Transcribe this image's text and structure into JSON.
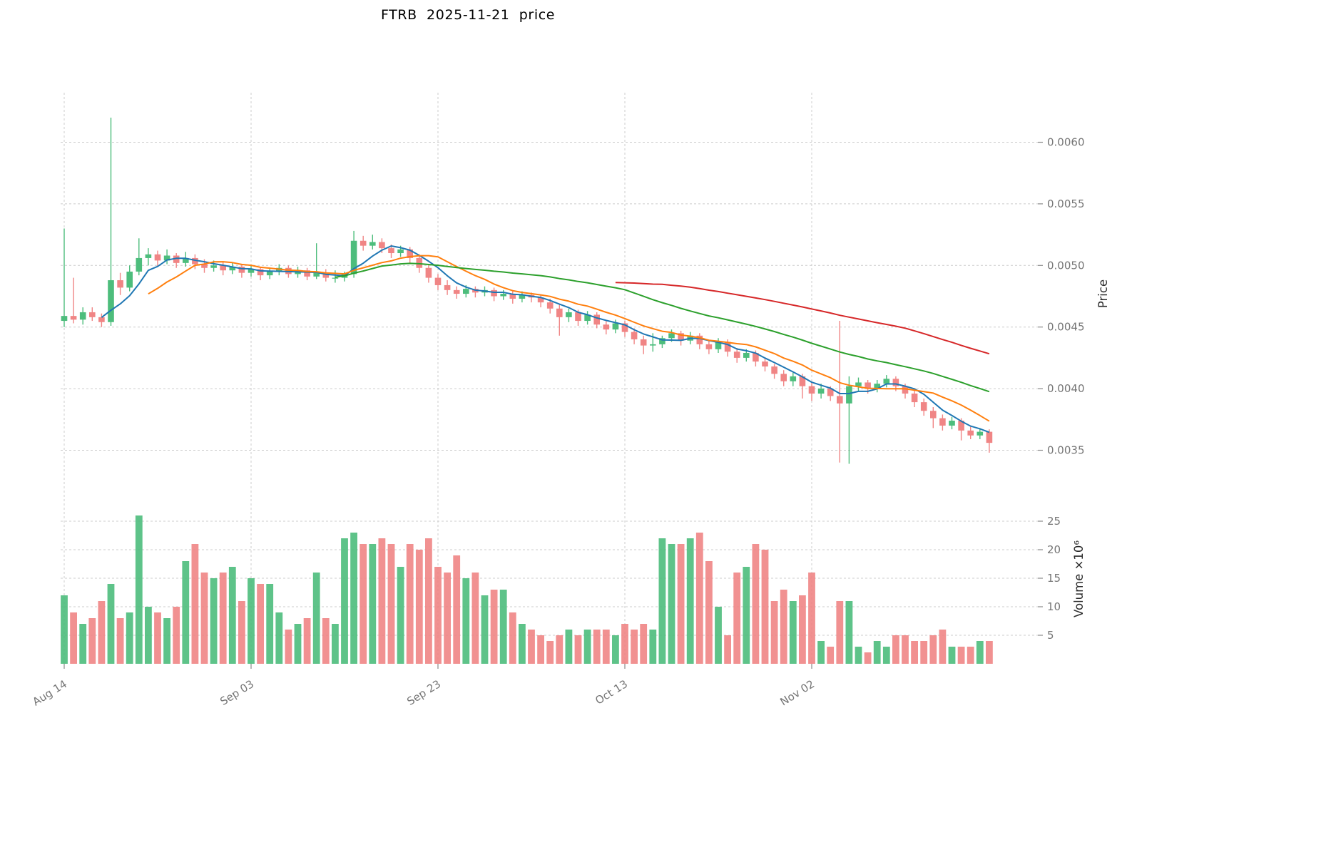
{
  "title": "FTRB  2025-11-21  price",
  "chart_data": {
    "type": "candlestick",
    "subtype": "ohlc-with-volume-and-moving-averages",
    "title": "FTRB  2025-11-21  price",
    "symbol": "FTRB",
    "as_of_date": "2025-11-21",
    "grid": true,
    "legend_position": "none",
    "price_axis": {
      "label": "Price",
      "side": "right",
      "ticks": [
        0.0035,
        0.004,
        0.0045,
        0.005,
        0.0055,
        0.006
      ],
      "range": [
        0.0032,
        0.0064
      ]
    },
    "volume_axis": {
      "label": "Volume  ×10⁶",
      "side": "right",
      "unit": 1000000,
      "ticks": [
        5,
        10,
        15,
        20,
        25
      ],
      "range": [
        0,
        27
      ]
    },
    "x_axis": {
      "tick_labels": [
        "Aug 14",
        "Sep 03",
        "Sep 23",
        "Oct 13",
        "Nov 02"
      ],
      "tick_indices": [
        0,
        20,
        40,
        60,
        80
      ],
      "n_points": 100
    },
    "colors": {
      "up": "#4dbd7c",
      "down": "#f08585",
      "ma_fast": "#1f77b4",
      "ma_mid": "#ff7f0e",
      "ma_slow": "#2ca02c",
      "ma_long": "#d62728",
      "grid": "#cccccc",
      "tick_text": "#757575"
    },
    "moving_averages": [
      {
        "window": 5,
        "color_key": "ma_fast"
      },
      {
        "window": 10,
        "color_key": "ma_mid"
      },
      {
        "window": 30,
        "color_key": "ma_slow"
      },
      {
        "window": 60,
        "color_key": "ma_long"
      }
    ],
    "ohlcv_columns": [
      "open",
      "high",
      "low",
      "close",
      "volume_millions"
    ],
    "ohlcv": [
      [
        0.00455,
        0.0053,
        0.0045,
        0.00459,
        12.0
      ],
      [
        0.00459,
        0.0049,
        0.00453,
        0.00456,
        9.0
      ],
      [
        0.00456,
        0.00466,
        0.00452,
        0.00462,
        7.0
      ],
      [
        0.00462,
        0.00466,
        0.00455,
        0.00458,
        8.0
      ],
      [
        0.00458,
        0.00461,
        0.0045,
        0.00454,
        11.0
      ],
      [
        0.00454,
        0.0062,
        0.00451,
        0.00488,
        14.0
      ],
      [
        0.00488,
        0.00494,
        0.00476,
        0.00482,
        8.0
      ],
      [
        0.00482,
        0.005,
        0.00479,
        0.00495,
        9.0
      ],
      [
        0.00495,
        0.00522,
        0.00492,
        0.00506,
        26.0
      ],
      [
        0.00506,
        0.00514,
        0.005,
        0.00509,
        10.0
      ],
      [
        0.00509,
        0.00512,
        0.00499,
        0.00504,
        9.0
      ],
      [
        0.00504,
        0.00513,
        0.00501,
        0.00508,
        8.0
      ],
      [
        0.00508,
        0.0051,
        0.00498,
        0.00502,
        10.0
      ],
      [
        0.00502,
        0.00511,
        0.00499,
        0.00506,
        18.0
      ],
      [
        0.00506,
        0.00509,
        0.00497,
        0.00501,
        21.0
      ],
      [
        0.00501,
        0.00505,
        0.00494,
        0.00498,
        16.0
      ],
      [
        0.00498,
        0.00504,
        0.00495,
        0.005,
        15.0
      ],
      [
        0.005,
        0.00503,
        0.00492,
        0.00496,
        16.0
      ],
      [
        0.00496,
        0.00502,
        0.00493,
        0.00499,
        17.0
      ],
      [
        0.00499,
        0.00501,
        0.0049,
        0.00494,
        11.0
      ],
      [
        0.00494,
        0.005,
        0.00491,
        0.00497,
        15.0
      ],
      [
        0.00497,
        0.00499,
        0.00488,
        0.00492,
        14.0
      ],
      [
        0.00492,
        0.00498,
        0.00489,
        0.00495,
        14.0
      ],
      [
        0.00495,
        0.00501,
        0.00492,
        0.00498,
        9.0
      ],
      [
        0.00498,
        0.005,
        0.0049,
        0.00493,
        6.0
      ],
      [
        0.00493,
        0.00499,
        0.0049,
        0.00496,
        7.0
      ],
      [
        0.00496,
        0.00498,
        0.00488,
        0.00491,
        8.0
      ],
      [
        0.00491,
        0.00518,
        0.00489,
        0.00494,
        16.0
      ],
      [
        0.00494,
        0.00497,
        0.00487,
        0.0049,
        8.0
      ],
      [
        0.0049,
        0.00496,
        0.00486,
        0.0049,
        7.0
      ],
      [
        0.0049,
        0.00495,
        0.00487,
        0.00493,
        22.0
      ],
      [
        0.00493,
        0.00528,
        0.0049,
        0.0052,
        23.0
      ],
      [
        0.0052,
        0.00524,
        0.00512,
        0.00516,
        21.0
      ],
      [
        0.00516,
        0.00525,
        0.00513,
        0.00519,
        21.0
      ],
      [
        0.00519,
        0.00522,
        0.0051,
        0.00514,
        22.0
      ],
      [
        0.00514,
        0.00517,
        0.00506,
        0.0051,
        21.0
      ],
      [
        0.0051,
        0.00516,
        0.00507,
        0.00513,
        17.0
      ],
      [
        0.00513,
        0.00515,
        0.00502,
        0.00506,
        21.0
      ],
      [
        0.00506,
        0.00509,
        0.00494,
        0.00498,
        20.0
      ],
      [
        0.00498,
        0.00501,
        0.00486,
        0.0049,
        22.0
      ],
      [
        0.0049,
        0.00493,
        0.0048,
        0.00484,
        17.0
      ],
      [
        0.00484,
        0.00488,
        0.00476,
        0.0048,
        16.0
      ],
      [
        0.0048,
        0.00483,
        0.00473,
        0.00477,
        19.0
      ],
      [
        0.00477,
        0.00484,
        0.00474,
        0.00481,
        15.0
      ],
      [
        0.00481,
        0.00483,
        0.00474,
        0.00478,
        16.0
      ],
      [
        0.00478,
        0.00483,
        0.00475,
        0.0048,
        12.0
      ],
      [
        0.0048,
        0.00482,
        0.00471,
        0.00475,
        13.0
      ],
      [
        0.00475,
        0.0048,
        0.00472,
        0.00477,
        13.0
      ],
      [
        0.00477,
        0.00479,
        0.00469,
        0.00473,
        9.0
      ],
      [
        0.00473,
        0.00479,
        0.0047,
        0.00476,
        7.0
      ],
      [
        0.00476,
        0.00478,
        0.0047,
        0.00474,
        6.0
      ],
      [
        0.00474,
        0.00476,
        0.00466,
        0.0047,
        5.0
      ],
      [
        0.0047,
        0.00473,
        0.00461,
        0.00465,
        4.0
      ],
      [
        0.00465,
        0.00468,
        0.00443,
        0.00458,
        5.0
      ],
      [
        0.00458,
        0.00465,
        0.00454,
        0.00462,
        6.0
      ],
      [
        0.00462,
        0.00464,
        0.00451,
        0.00455,
        5.0
      ],
      [
        0.00455,
        0.00463,
        0.00452,
        0.0046,
        6.0
      ],
      [
        0.0046,
        0.00462,
        0.00449,
        0.00452,
        6.0
      ],
      [
        0.00452,
        0.00455,
        0.00444,
        0.00448,
        6.0
      ],
      [
        0.00448,
        0.00456,
        0.00445,
        0.00453,
        5.0
      ],
      [
        0.00453,
        0.00455,
        0.00442,
        0.00446,
        7.0
      ],
      [
        0.00446,
        0.00449,
        0.00436,
        0.0044,
        6.0
      ],
      [
        0.0044,
        0.00443,
        0.00428,
        0.00435,
        7.0
      ],
      [
        0.00435,
        0.00445,
        0.0043,
        0.00436,
        6.0
      ],
      [
        0.00436,
        0.00443,
        0.00433,
        0.00441,
        22.0
      ],
      [
        0.00441,
        0.00448,
        0.00438,
        0.00445,
        21.0
      ],
      [
        0.00445,
        0.00447,
        0.00435,
        0.00439,
        21.0
      ],
      [
        0.00439,
        0.00446,
        0.00436,
        0.00443,
        22.0
      ],
      [
        0.00443,
        0.00445,
        0.00432,
        0.00436,
        23.0
      ],
      [
        0.00436,
        0.00439,
        0.00428,
        0.00432,
        18.0
      ],
      [
        0.00432,
        0.00441,
        0.00429,
        0.00438,
        10.0
      ],
      [
        0.00438,
        0.0044,
        0.00426,
        0.0043,
        5.0
      ],
      [
        0.0043,
        0.00433,
        0.00421,
        0.00425,
        16.0
      ],
      [
        0.00425,
        0.00432,
        0.00422,
        0.00429,
        17.0
      ],
      [
        0.00429,
        0.00431,
        0.00418,
        0.00422,
        21.0
      ],
      [
        0.00422,
        0.00425,
        0.00414,
        0.00418,
        20.0
      ],
      [
        0.00418,
        0.0042,
        0.00408,
        0.00412,
        11.0
      ],
      [
        0.00412,
        0.00415,
        0.00402,
        0.00406,
        13.0
      ],
      [
        0.00406,
        0.00413,
        0.00402,
        0.0041,
        11.0
      ],
      [
        0.0041,
        0.00412,
        0.00392,
        0.00402,
        12.0
      ],
      [
        0.00402,
        0.00405,
        0.0039,
        0.00396,
        16.0
      ],
      [
        0.00396,
        0.00404,
        0.00392,
        0.004,
        4.0
      ],
      [
        0.004,
        0.00402,
        0.0039,
        0.00394,
        3.0
      ],
      [
        0.00394,
        0.00455,
        0.0034,
        0.00388,
        11.0
      ],
      [
        0.00388,
        0.0041,
        0.00339,
        0.00402,
        11.0
      ],
      [
        0.00402,
        0.00409,
        0.00398,
        0.00405,
        3.0
      ],
      [
        0.00405,
        0.00407,
        0.00396,
        0.004,
        2.0
      ],
      [
        0.004,
        0.00407,
        0.00397,
        0.00404,
        4.0
      ],
      [
        0.00404,
        0.00411,
        0.00401,
        0.00408,
        3.0
      ],
      [
        0.00408,
        0.0041,
        0.00398,
        0.00402,
        5.0
      ],
      [
        0.00402,
        0.00404,
        0.00392,
        0.00396,
        5.0
      ],
      [
        0.00396,
        0.00399,
        0.00385,
        0.00389,
        4.0
      ],
      [
        0.00389,
        0.00392,
        0.00378,
        0.00382,
        4.0
      ],
      [
        0.00382,
        0.00385,
        0.00368,
        0.00376,
        5.0
      ],
      [
        0.00376,
        0.00379,
        0.00366,
        0.0037,
        6.0
      ],
      [
        0.0037,
        0.00377,
        0.00367,
        0.00374,
        3.0
      ],
      [
        0.00374,
        0.00376,
        0.00358,
        0.00366,
        3.0
      ],
      [
        0.00366,
        0.00369,
        0.00359,
        0.00362,
        3.0
      ],
      [
        0.00362,
        0.00368,
        0.00359,
        0.00365,
        4.0
      ],
      [
        0.00365,
        0.00367,
        0.00348,
        0.00356,
        4.0
      ]
    ]
  }
}
